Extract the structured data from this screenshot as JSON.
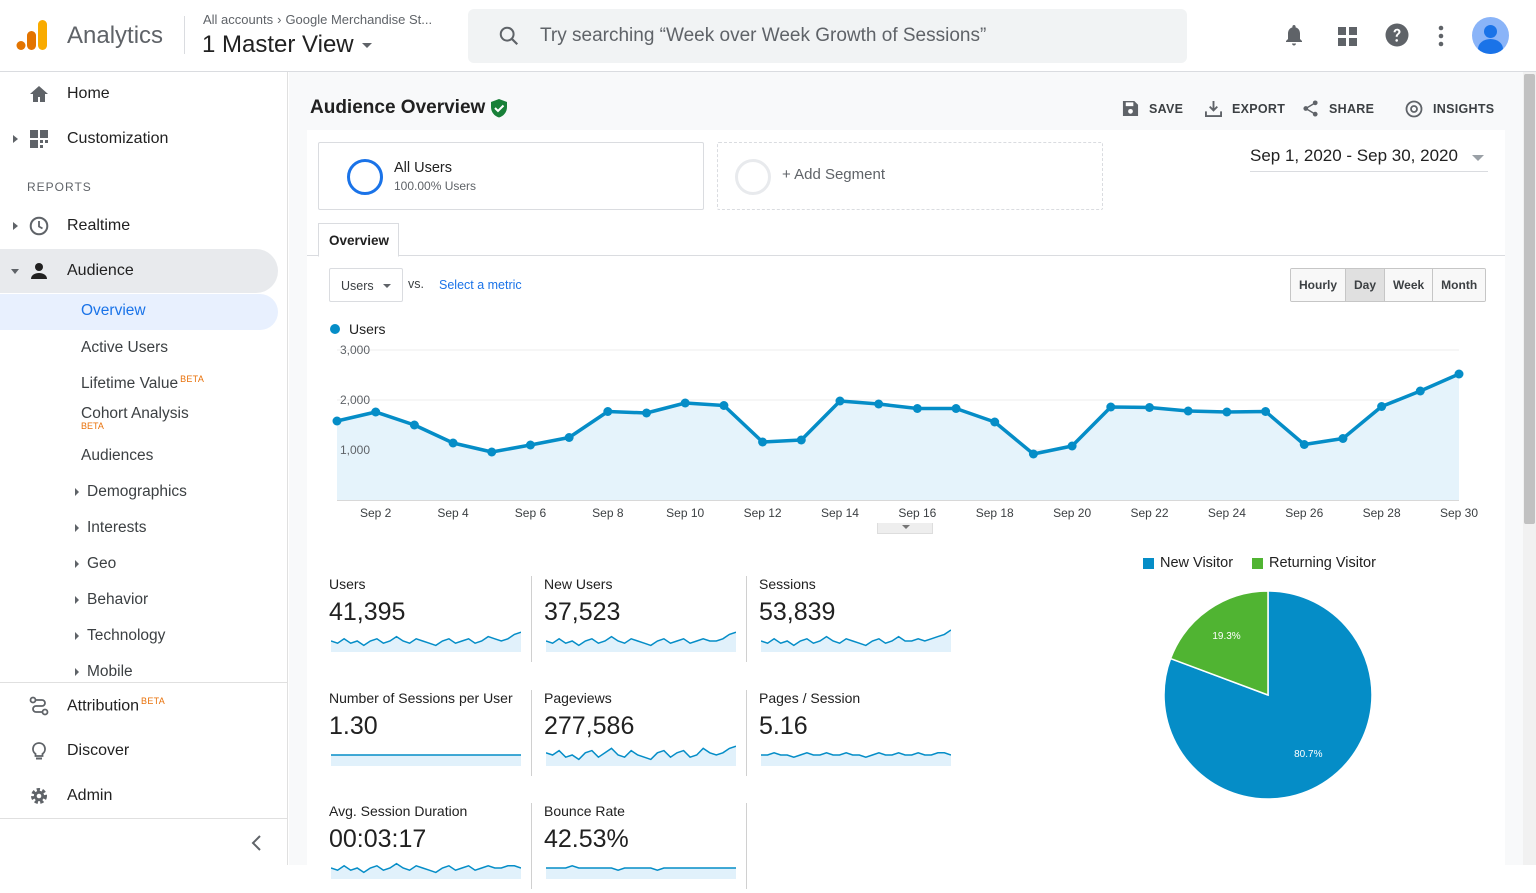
{
  "app": {
    "name": "Analytics"
  },
  "breadcrumb": {
    "accounts": "All accounts",
    "property": "Google Merchandise St...",
    "view": "1 Master View"
  },
  "search": {
    "placeholder": "Try searching “Week over Week Growth of Sessions”"
  },
  "topbar_icons": [
    "bell-icon",
    "apps-grid-icon",
    "help-icon",
    "more-vert-icon",
    "avatar"
  ],
  "sidebar": {
    "home": "Home",
    "customization": "Customization",
    "reports_heading": "REPORTS",
    "realtime": "Realtime",
    "audience": "Audience",
    "audience_items": {
      "overview": "Overview",
      "active_users": "Active Users",
      "lifetime_value": "Lifetime Value",
      "cohort_analysis": "Cohort Analysis",
      "audiences": "Audiences",
      "demographics": "Demographics",
      "interests": "Interests",
      "geo": "Geo",
      "behavior": "Behavior",
      "technology": "Technology",
      "mobile": "Mobile"
    },
    "beta": "BETA",
    "attribution": "Attribution",
    "discover": "Discover",
    "admin": "Admin"
  },
  "page": {
    "title": "Audience Overview",
    "actions": {
      "save": "SAVE",
      "export": "EXPORT",
      "share": "SHARE",
      "insights": "INSIGHTS"
    },
    "segment": {
      "name": "All Users",
      "percent": "100.00% Users",
      "add": "+ Add Segment"
    },
    "date_range": "Sep 1, 2020 - Sep 30, 2020",
    "tab": "Overview",
    "metric_select": "Users",
    "vs": "vs.",
    "select_metric": "Select a metric",
    "granularity": [
      "Hourly",
      "Day",
      "Week",
      "Month"
    ],
    "granularity_selected": "Day"
  },
  "chart_data": [
    {
      "type": "area",
      "series": [
        {
          "name": "Users",
          "color": "#058dc7",
          "values": [
            1580,
            1760,
            1500,
            1140,
            960,
            1100,
            1250,
            1770,
            1740,
            1940,
            1890,
            1160,
            1200,
            1980,
            1920,
            1830,
            1830,
            1560,
            920,
            1080,
            1860,
            1850,
            1780,
            1760,
            1770,
            1110,
            1230,
            1870,
            2180,
            2520
          ]
        }
      ],
      "x": [
        "Sep 1",
        "Sep 2",
        "Sep 3",
        "Sep 4",
        "Sep 5",
        "Sep 6",
        "Sep 7",
        "Sep 8",
        "Sep 9",
        "Sep 10",
        "Sep 11",
        "Sep 12",
        "Sep 13",
        "Sep 14",
        "Sep 15",
        "Sep 16",
        "Sep 17",
        "Sep 18",
        "Sep 19",
        "Sep 20",
        "Sep 21",
        "Sep 22",
        "Sep 23",
        "Sep 24",
        "Sep 25",
        "Sep 26",
        "Sep 27",
        "Sep 28",
        "Sep 29",
        "Sep 30"
      ],
      "x_tick_labels": [
        "Sep 2",
        "Sep 4",
        "Sep 6",
        "Sep 8",
        "Sep 10",
        "Sep 12",
        "Sep 14",
        "Sep 16",
        "Sep 18",
        "Sep 20",
        "Sep 22",
        "Sep 24",
        "Sep 26",
        "Sep 28",
        "Sep 30"
      ],
      "y_tick_labels": [
        "3,000",
        "2,000",
        "1,000"
      ],
      "ylim": [
        0,
        3000
      ],
      "grid": true,
      "legend": "top-left"
    },
    {
      "type": "pie",
      "slices": [
        {
          "name": "New Visitor",
          "value": 80.7,
          "label": "80.7%",
          "color": "#058dc7"
        },
        {
          "name": "Returning Visitor",
          "value": 19.3,
          "label": "19.3%",
          "color": "#50b432"
        }
      ],
      "legend": "top"
    }
  ],
  "metrics": [
    {
      "label": "Users",
      "value": "41,395",
      "spark": [
        5,
        4,
        6,
        4,
        5,
        3,
        5,
        6,
        4,
        5,
        7,
        5,
        4,
        6,
        5,
        4,
        3,
        5,
        6,
        4,
        5,
        6,
        4,
        5,
        7,
        6,
        5,
        6,
        8,
        9
      ]
    },
    {
      "label": "New Users",
      "value": "37,523",
      "spark": [
        5,
        4,
        6,
        4,
        5,
        3,
        5,
        6,
        4,
        5,
        7,
        5,
        4,
        6,
        5,
        4,
        3,
        5,
        6,
        4,
        5,
        6,
        4,
        5,
        6,
        5,
        5,
        6,
        8,
        9
      ]
    },
    {
      "label": "Sessions",
      "value": "53,839",
      "spark": [
        5,
        4,
        6,
        4,
        5,
        3,
        5,
        6,
        4,
        5,
        7,
        5,
        4,
        6,
        5,
        4,
        3,
        5,
        6,
        4,
        5,
        7,
        5,
        5,
        6,
        5,
        6,
        7,
        8,
        10
      ]
    },
    {
      "label": "Number of Sessions per User",
      "value": "1.30",
      "spark": [
        5,
        5,
        5,
        5,
        5,
        5,
        5,
        5,
        5,
        5,
        5,
        5,
        5,
        5,
        5,
        5,
        5,
        5,
        5,
        5,
        5,
        5,
        5,
        5,
        5,
        5,
        5,
        5,
        5,
        5
      ]
    },
    {
      "label": "Pageviews",
      "value": "277,586",
      "spark": [
        6,
        5,
        7,
        4,
        5,
        3,
        6,
        7,
        4,
        6,
        8,
        5,
        4,
        7,
        5,
        4,
        3,
        6,
        7,
        4,
        6,
        7,
        4,
        5,
        8,
        6,
        5,
        6,
        8,
        9
      ]
    },
    {
      "label": "Pages / Session",
      "value": "5.16",
      "spark": [
        5,
        5,
        6,
        5,
        5,
        4,
        5,
        6,
        5,
        5,
        6,
        5,
        5,
        6,
        5,
        5,
        4,
        5,
        6,
        5,
        5,
        6,
        5,
        5,
        6,
        5,
        5,
        6,
        6,
        5
      ]
    },
    {
      "label": "Avg. Session Duration",
      "value": "00:03:17",
      "spark": [
        5,
        4,
        6,
        4,
        5,
        3,
        5,
        6,
        4,
        5,
        7,
        5,
        4,
        6,
        5,
        4,
        3,
        5,
        6,
        4,
        5,
        6,
        4,
        5,
        6,
        5,
        5,
        6,
        6,
        5
      ]
    },
    {
      "label": "Bounce Rate",
      "value": "42.53%",
      "spark": [
        5,
        5,
        5,
        5,
        6,
        5,
        5,
        5,
        5,
        5,
        5,
        4,
        5,
        5,
        5,
        5,
        5,
        4,
        5,
        5,
        5,
        5,
        5,
        5,
        5,
        5,
        5,
        5,
        5,
        5
      ]
    }
  ]
}
